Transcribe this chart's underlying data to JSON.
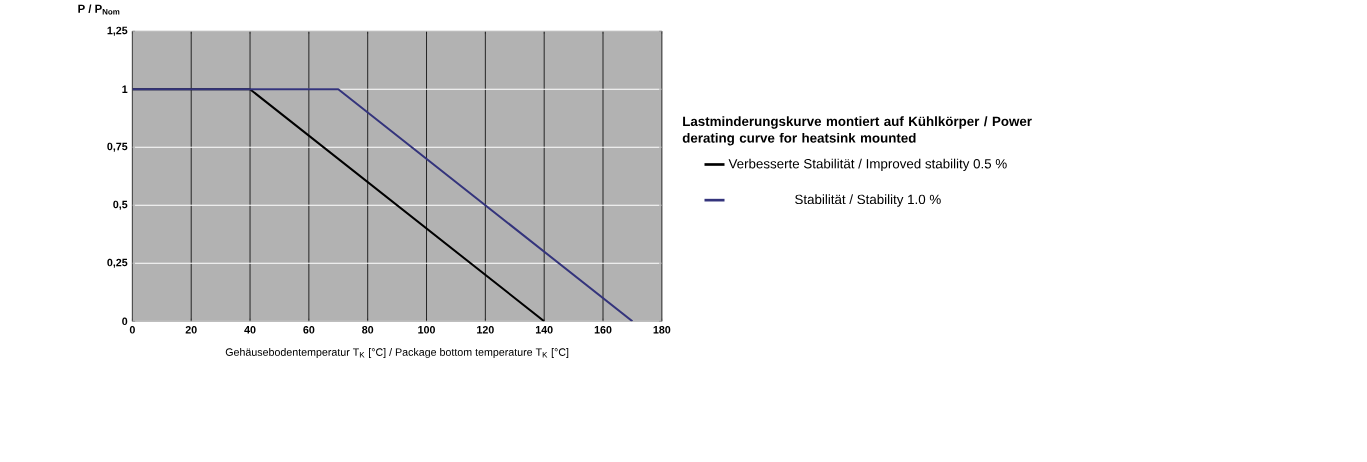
{
  "chart_data": {
    "type": "line",
    "title": "Lastminderungskurve montiert auf Kühlkörper / Power derating curve for heatsink mounted",
    "xlabel": "Gehäusebodentemperatur T$_{K}$ [°C] / Package bottom temperature  T$_{K}$ [°C]",
    "ylabel": "P / P$_{Nom}$",
    "series": [
      {
        "name": "Verbesserte Stabilität / Improved stability 0.5 %",
        "color": "#000000",
        "x": [
          0,
          40,
          140
        ],
        "values": [
          1,
          1,
          0
        ]
      },
      {
        "name": "Stabilität / Stability 1.0 %",
        "color": "#34347c",
        "x": [
          0,
          70,
          170
        ],
        "values": [
          1,
          1,
          0
        ]
      }
    ],
    "xlim": [
      0,
      180
    ],
    "ylim": [
      0,
      1.25
    ],
    "xticks": [
      0,
      20,
      40,
      60,
      80,
      100,
      120,
      140,
      160,
      180
    ],
    "yticks": [
      0,
      {
        "value": 0.25,
        "label": "0,25"
      },
      {
        "value": 0.5,
        "label": "0,5"
      },
      {
        "value": 0.75,
        "label": "0,75"
      },
      1,
      {
        "value": 1.25,
        "label": "1,25"
      }
    ],
    "grid": true,
    "legend": "right",
    "marker": "none",
    "line_style": "solid"
  }
}
